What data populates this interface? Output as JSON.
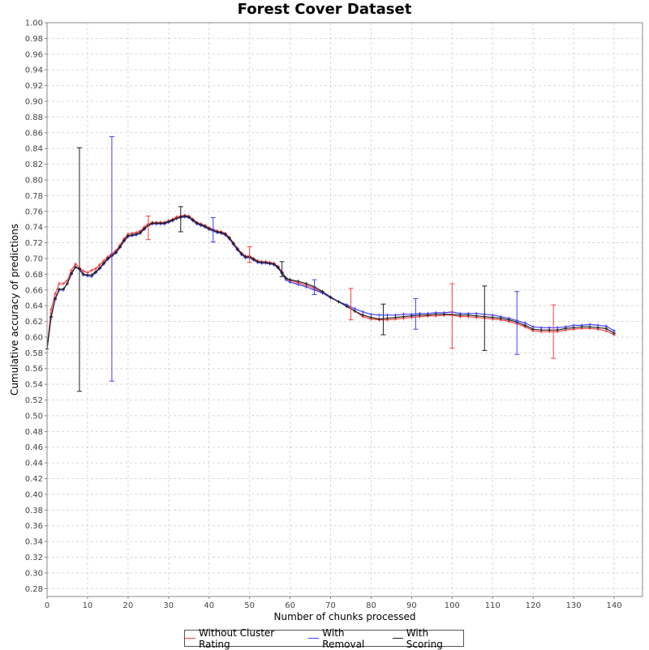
{
  "chart_data": {
    "type": "line",
    "title": "Forest Cover Dataset",
    "xlabel": "Number of chunks processed",
    "ylabel": "Cumulative accuracy of predictions",
    "xlim": [
      0,
      147
    ],
    "ylim": [
      0.27,
      1.0
    ],
    "x_ticks": [
      0,
      10,
      20,
      30,
      40,
      50,
      60,
      70,
      80,
      90,
      100,
      110,
      120,
      130,
      140
    ],
    "y_ticks": [
      0.28,
      0.3,
      0.32,
      0.34,
      0.36,
      0.38,
      0.4,
      0.42,
      0.44,
      0.46,
      0.48,
      0.5,
      0.52,
      0.54,
      0.56,
      0.58,
      0.6,
      0.62,
      0.64,
      0.66,
      0.68,
      0.7,
      0.72,
      0.74,
      0.76,
      0.78,
      0.8,
      0.82,
      0.84,
      0.86,
      0.88,
      0.9,
      0.92,
      0.94,
      0.96,
      0.98,
      1.0
    ],
    "grid": true,
    "legend_position": "bottom",
    "series": [
      {
        "name": "Without Cluster Rating",
        "color": "#ff4040",
        "x": [
          0,
          1,
          2,
          3,
          4,
          5,
          6,
          7,
          8,
          9,
          10,
          11,
          12,
          13,
          14,
          15,
          16,
          17,
          18,
          19,
          20,
          21,
          22,
          23,
          24,
          25,
          26,
          27,
          28,
          29,
          30,
          31,
          32,
          33,
          34,
          35,
          36,
          37,
          38,
          39,
          40,
          41,
          42,
          43,
          44,
          45,
          46,
          47,
          48,
          49,
          50,
          51,
          52,
          53,
          54,
          55,
          56,
          57,
          58,
          59,
          60,
          62,
          64,
          66,
          68,
          70,
          72,
          74,
          76,
          78,
          80,
          82,
          84,
          86,
          88,
          90,
          92,
          94,
          96,
          98,
          100,
          102,
          104,
          106,
          108,
          110,
          112,
          114,
          116,
          118,
          120,
          122,
          124,
          126,
          128,
          130,
          132,
          134,
          136,
          138,
          140
        ],
        "y": [
          0.585,
          0.635,
          0.655,
          0.668,
          0.668,
          0.672,
          0.685,
          0.693,
          0.688,
          0.684,
          0.682,
          0.685,
          0.687,
          0.692,
          0.697,
          0.702,
          0.706,
          0.71,
          0.717,
          0.725,
          0.731,
          0.732,
          0.733,
          0.735,
          0.74,
          0.744,
          0.746,
          0.746,
          0.746,
          0.746,
          0.748,
          0.75,
          0.753,
          0.754,
          0.755,
          0.754,
          0.75,
          0.746,
          0.744,
          0.742,
          0.739,
          0.737,
          0.735,
          0.734,
          0.732,
          0.727,
          0.72,
          0.713,
          0.707,
          0.703,
          0.703,
          0.7,
          0.697,
          0.696,
          0.696,
          0.695,
          0.694,
          0.69,
          0.683,
          0.675,
          0.672,
          0.669,
          0.666,
          0.662,
          0.657,
          0.65,
          0.645,
          0.64,
          0.633,
          0.626,
          0.623,
          0.622,
          0.622,
          0.623,
          0.624,
          0.625,
          0.626,
          0.627,
          0.627,
          0.628,
          0.628,
          0.626,
          0.626,
          0.625,
          0.624,
          0.623,
          0.622,
          0.62,
          0.617,
          0.613,
          0.608,
          0.607,
          0.607,
          0.607,
          0.609,
          0.61,
          0.611,
          0.611,
          0.61,
          0.608,
          0.603
        ],
        "error_bars": [
          {
            "x": 25,
            "low": 0.724,
            "high": 0.754
          },
          {
            "x": 50,
            "low": 0.695,
            "high": 0.715
          },
          {
            "x": 75,
            "low": 0.622,
            "high": 0.662
          },
          {
            "x": 100,
            "low": 0.586,
            "high": 0.668
          },
          {
            "x": 125,
            "low": 0.573,
            "high": 0.641
          }
        ]
      },
      {
        "name": "With Removal",
        "color": "#4040ff",
        "x": [
          0,
          1,
          2,
          3,
          4,
          5,
          6,
          7,
          8,
          9,
          10,
          11,
          12,
          13,
          14,
          15,
          16,
          17,
          18,
          19,
          20,
          21,
          22,
          23,
          24,
          25,
          26,
          27,
          28,
          29,
          30,
          31,
          32,
          33,
          34,
          35,
          36,
          37,
          38,
          39,
          40,
          41,
          42,
          43,
          44,
          45,
          46,
          47,
          48,
          49,
          50,
          51,
          52,
          53,
          54,
          55,
          56,
          57,
          58,
          59,
          60,
          62,
          64,
          66,
          68,
          70,
          72,
          74,
          76,
          78,
          80,
          82,
          84,
          86,
          88,
          90,
          92,
          94,
          96,
          98,
          100,
          102,
          104,
          106,
          108,
          110,
          112,
          114,
          116,
          118,
          120,
          122,
          124,
          126,
          128,
          130,
          132,
          134,
          136,
          138,
          140
        ],
        "y": [
          0.585,
          0.625,
          0.648,
          0.66,
          0.66,
          0.668,
          0.68,
          0.689,
          0.686,
          0.679,
          0.678,
          0.677,
          0.682,
          0.687,
          0.693,
          0.699,
          0.703,
          0.707,
          0.714,
          0.722,
          0.728,
          0.729,
          0.73,
          0.732,
          0.737,
          0.742,
          0.744,
          0.744,
          0.744,
          0.744,
          0.746,
          0.748,
          0.751,
          0.752,
          0.753,
          0.752,
          0.748,
          0.744,
          0.742,
          0.74,
          0.737,
          0.735,
          0.733,
          0.732,
          0.73,
          0.725,
          0.718,
          0.711,
          0.705,
          0.701,
          0.701,
          0.698,
          0.695,
          0.694,
          0.694,
          0.693,
          0.692,
          0.688,
          0.681,
          0.673,
          0.67,
          0.667,
          0.664,
          0.66,
          0.656,
          0.65,
          0.645,
          0.641,
          0.636,
          0.632,
          0.629,
          0.628,
          0.628,
          0.628,
          0.629,
          0.629,
          0.63,
          0.63,
          0.631,
          0.631,
          0.632,
          0.63,
          0.63,
          0.63,
          0.629,
          0.628,
          0.626,
          0.624,
          0.621,
          0.618,
          0.613,
          0.612,
          0.612,
          0.612,
          0.613,
          0.615,
          0.615,
          0.616,
          0.615,
          0.614,
          0.608
        ],
        "error_bars": [
          {
            "x": 16,
            "low": 0.544,
            "high": 0.855
          },
          {
            "x": 41,
            "low": 0.721,
            "high": 0.752
          },
          {
            "x": 66,
            "low": 0.654,
            "high": 0.673
          },
          {
            "x": 91,
            "low": 0.61,
            "high": 0.649
          },
          {
            "x": 116,
            "low": 0.578,
            "high": 0.658
          }
        ]
      },
      {
        "name": "With Scoring",
        "color": "#202020",
        "x": [
          0,
          1,
          2,
          3,
          4,
          5,
          6,
          7,
          8,
          9,
          10,
          11,
          12,
          13,
          14,
          15,
          16,
          17,
          18,
          19,
          20,
          21,
          22,
          23,
          24,
          25,
          26,
          27,
          28,
          29,
          30,
          31,
          32,
          33,
          34,
          35,
          36,
          37,
          38,
          39,
          40,
          41,
          42,
          43,
          44,
          45,
          46,
          47,
          48,
          49,
          50,
          51,
          52,
          53,
          54,
          55,
          56,
          57,
          58,
          59,
          60,
          62,
          64,
          66,
          68,
          70,
          72,
          74,
          76,
          78,
          80,
          82,
          84,
          86,
          88,
          90,
          92,
          94,
          96,
          98,
          100,
          102,
          104,
          106,
          108,
          110,
          112,
          114,
          116,
          118,
          120,
          122,
          124,
          126,
          128,
          130,
          132,
          134,
          136,
          138,
          140
        ],
        "y": [
          0.585,
          0.626,
          0.649,
          0.661,
          0.661,
          0.668,
          0.681,
          0.689,
          0.687,
          0.68,
          0.679,
          0.679,
          0.683,
          0.688,
          0.694,
          0.7,
          0.704,
          0.708,
          0.715,
          0.723,
          0.729,
          0.73,
          0.731,
          0.733,
          0.738,
          0.742,
          0.745,
          0.745,
          0.745,
          0.745,
          0.747,
          0.749,
          0.751,
          0.753,
          0.754,
          0.753,
          0.749,
          0.745,
          0.743,
          0.741,
          0.738,
          0.736,
          0.734,
          0.733,
          0.731,
          0.726,
          0.719,
          0.712,
          0.706,
          0.702,
          0.702,
          0.699,
          0.696,
          0.695,
          0.695,
          0.694,
          0.693,
          0.689,
          0.682,
          0.675,
          0.673,
          0.671,
          0.668,
          0.664,
          0.658,
          0.651,
          0.645,
          0.639,
          0.633,
          0.628,
          0.625,
          0.623,
          0.624,
          0.625,
          0.626,
          0.627,
          0.628,
          0.628,
          0.629,
          0.629,
          0.629,
          0.628,
          0.628,
          0.627,
          0.626,
          0.625,
          0.624,
          0.622,
          0.619,
          0.615,
          0.61,
          0.609,
          0.609,
          0.609,
          0.611,
          0.612,
          0.613,
          0.613,
          0.612,
          0.611,
          0.605
        ],
        "error_bars": [
          {
            "x": 8,
            "low": 0.531,
            "high": 0.841
          },
          {
            "x": 33,
            "low": 0.734,
            "high": 0.766
          },
          {
            "x": 58,
            "low": 0.677,
            "high": 0.696
          },
          {
            "x": 83,
            "low": 0.603,
            "high": 0.642
          },
          {
            "x": 108,
            "low": 0.583,
            "high": 0.665
          }
        ]
      }
    ]
  }
}
